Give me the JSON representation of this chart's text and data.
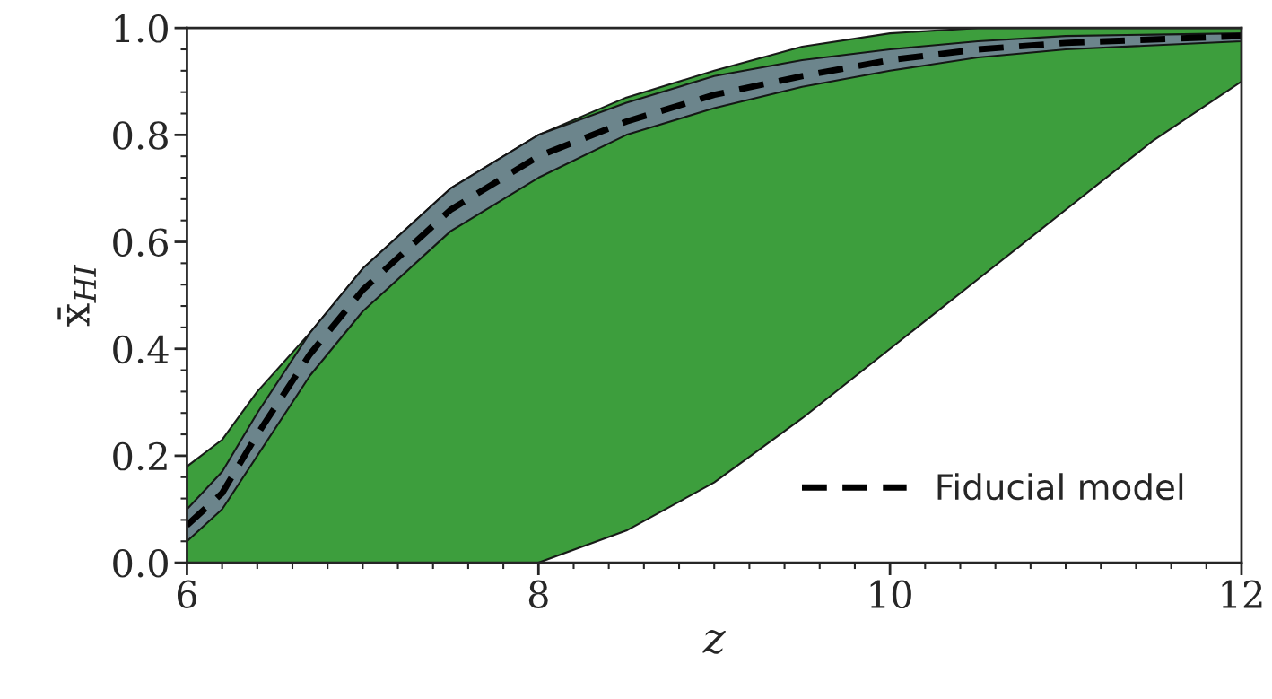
{
  "chart_data": {
    "type": "line",
    "xlabel": "z",
    "ylabel": "x̄$_{HI}$",
    "xlim": [
      6,
      12
    ],
    "ylim": [
      0,
      1
    ],
    "xticks": [
      6,
      8,
      10,
      12
    ],
    "yticks": [
      {
        "value": 0,
        "label": "0.0"
      },
      {
        "value": 0.2,
        "label": "0.2"
      },
      {
        "value": 0.4,
        "label": "0.4"
      },
      {
        "value": 0.6,
        "label": "0.6"
      },
      {
        "value": 0.8,
        "label": "0.8"
      },
      {
        "value": 1,
        "label": "1.0"
      }
    ],
    "legend": "bottom right",
    "grid": false,
    "series": [
      {
        "color": "#339933",
        "x": [
          6,
          6.2,
          6.4,
          6.7,
          7,
          7.5,
          8,
          8.5,
          9,
          9.5,
          10,
          10.5,
          11,
          11.5,
          12
        ],
        "values": [
          null,
          null,
          null,
          null,
          null,
          null,
          null,
          null,
          null,
          null,
          null,
          null,
          null,
          null,
          null
        ],
        "upper": [
          0.18,
          0.23,
          0.32,
          0.43,
          0.55,
          0.7,
          0.8,
          0.87,
          0.92,
          0.965,
          0.99,
          1.0,
          1.0,
          1.0,
          1.0
        ],
        "lower": [
          0,
          0,
          0,
          0,
          0,
          0,
          0,
          0.06,
          0.15,
          0.27,
          0.4,
          0.53,
          0.66,
          0.79,
          0.9
        ]
      },
      {
        "color": "#6f8490",
        "x": [
          6,
          6.2,
          6.4,
          6.7,
          7,
          7.5,
          8,
          8.5,
          9,
          9.5,
          10,
          10.5,
          11,
          12
        ],
        "values": [
          null,
          null,
          null,
          null,
          null,
          null,
          null,
          null,
          null,
          null,
          null,
          null,
          null,
          null
        ],
        "upper": [
          0.1,
          0.17,
          0.28,
          0.43,
          0.55,
          0.7,
          0.8,
          0.86,
          0.91,
          0.94,
          0.96,
          0.975,
          0.985,
          0.99
        ],
        "lower": [
          0.04,
          0.1,
          0.2,
          0.35,
          0.47,
          0.62,
          0.72,
          0.8,
          0.85,
          0.89,
          0.92,
          0.945,
          0.96,
          0.975
        ]
      },
      {
        "name": "Fiducial model",
        "color": "#000000",
        "line_style": "dashed",
        "x": [
          6,
          6.2,
          6.4,
          6.7,
          7,
          7.5,
          8,
          8.5,
          9,
          9.5,
          10,
          10.5,
          11,
          12
        ],
        "values": [
          0.07,
          0.13,
          0.24,
          0.39,
          0.51,
          0.66,
          0.76,
          0.825,
          0.875,
          0.91,
          0.94,
          0.96,
          0.972,
          0.985
        ]
      }
    ]
  }
}
